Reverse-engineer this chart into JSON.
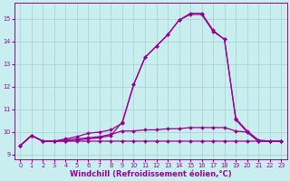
{
  "xlabel": "Windchill (Refroidissement éolien,°C)",
  "bg_color": "#c8eef0",
  "line_color": "#990099",
  "grid_color": "#aacccc",
  "xlim": [
    -0.5,
    23.5
  ],
  "ylim": [
    8.8,
    15.7
  ],
  "xticks": [
    0,
    1,
    2,
    3,
    4,
    5,
    6,
    7,
    8,
    9,
    10,
    11,
    12,
    13,
    14,
    15,
    16,
    17,
    18,
    19,
    20,
    21,
    22,
    23
  ],
  "yticks": [
    9,
    10,
    11,
    12,
    13,
    14,
    15
  ],
  "line1_x": [
    0,
    1,
    2,
    3,
    4,
    5,
    6,
    7,
    8,
    9,
    10,
    11,
    12,
    13,
    14,
    15,
    16,
    17,
    18,
    19,
    20,
    21,
    22,
    23
  ],
  "line1_y": [
    9.4,
    9.85,
    9.6,
    9.6,
    9.65,
    9.7,
    9.75,
    9.8,
    9.9,
    10.05,
    10.05,
    10.1,
    10.1,
    10.15,
    10.15,
    10.2,
    10.2,
    10.2,
    10.2,
    10.05,
    10.0,
    9.6,
    9.6,
    9.6
  ],
  "line2_x": [
    0,
    1,
    2,
    3,
    4,
    5,
    6,
    7,
    8,
    9,
    10,
    11,
    12,
    13,
    14,
    15,
    16,
    17,
    18,
    19,
    20,
    21,
    22,
    23
  ],
  "line2_y": [
    9.4,
    9.85,
    9.6,
    9.6,
    9.6,
    9.65,
    9.7,
    9.75,
    9.85,
    10.45,
    12.1,
    13.3,
    13.8,
    14.3,
    14.95,
    15.2,
    15.2,
    14.45,
    14.1,
    10.55,
    10.0,
    9.6,
    9.6,
    9.6
  ],
  "line3_x": [
    0,
    1,
    2,
    3,
    4,
    5,
    6,
    7,
    8,
    9,
    10,
    11,
    12,
    13,
    14,
    15,
    16,
    17,
    18,
    19,
    20,
    21,
    22,
    23
  ],
  "line3_y": [
    9.4,
    9.85,
    9.6,
    9.6,
    9.7,
    9.8,
    9.95,
    10.0,
    10.1,
    10.4,
    12.1,
    13.3,
    13.8,
    14.3,
    14.95,
    15.25,
    15.25,
    14.5,
    14.1,
    10.6,
    10.05,
    9.65,
    9.6,
    9.6
  ],
  "line4_x": [
    0,
    1,
    2,
    3,
    4,
    5,
    6,
    7,
    8,
    9,
    10,
    11,
    12,
    13,
    14,
    15,
    16,
    17,
    18,
    19,
    20,
    21,
    22,
    23
  ],
  "line4_y": [
    9.4,
    9.85,
    9.6,
    9.6,
    9.6,
    9.6,
    9.6,
    9.6,
    9.6,
    9.6,
    9.6,
    9.6,
    9.6,
    9.6,
    9.6,
    9.6,
    9.6,
    9.6,
    9.6,
    9.6,
    9.6,
    9.6,
    9.6,
    9.6
  ],
  "marker": "D",
  "markersize": 2.0,
  "linewidth": 0.9,
  "tick_fontsize": 4.8,
  "label_fontsize": 6.0
}
